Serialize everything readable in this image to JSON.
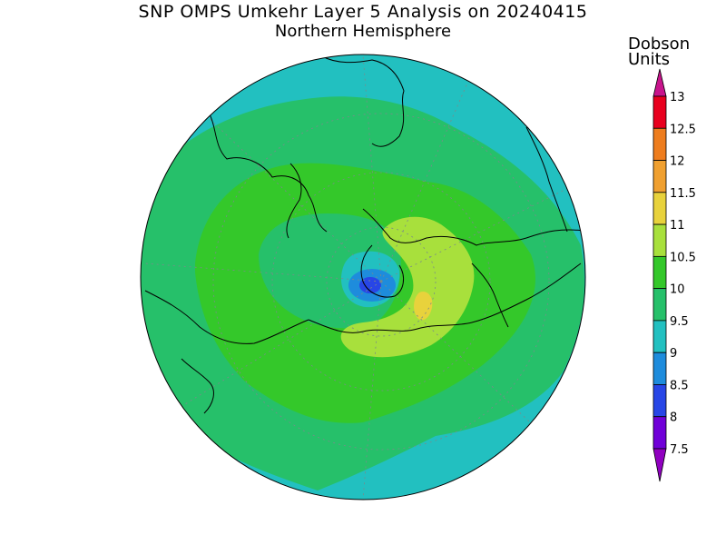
{
  "title": "SNP OMPS Umkehr Layer 5 Analysis on 20240415",
  "subtitle": "Northern Hemisphere",
  "units": {
    "line1": "Dobson",
    "line2": "Units"
  },
  "colorbar": {
    "levels": [
      "13",
      "12.5",
      "12",
      "11.5",
      "11",
      "10.5",
      "10",
      "9.5",
      "9",
      "8.5",
      "8",
      "7.5"
    ],
    "colors": [
      "#e8001e",
      "#ee7d1e",
      "#f0a030",
      "#e8d23c",
      "#a8e03c",
      "#34c82a",
      "#26c06a",
      "#22c0c0",
      "#1e8cdc",
      "#2846e6",
      "#7000d8"
    ],
    "top_cap": "#c8148c",
    "bottom_cap": "#9000c0"
  },
  "map": {
    "projection": "north-polar-stereographic",
    "field": "ozone-layer-5",
    "background_level": "9-9.5"
  }
}
